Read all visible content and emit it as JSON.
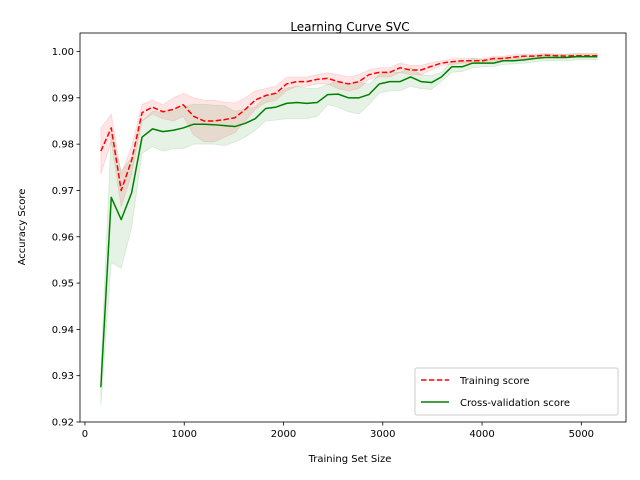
{
  "chart_data": {
    "type": "line",
    "title": "Learning Curve SVC",
    "xlabel": "Training Set Size",
    "ylabel": "Accuracy Score",
    "xlim": [
      -50,
      5450
    ],
    "ylim": [
      0.92,
      1.004
    ],
    "xticks": [
      0,
      1000,
      2000,
      3000,
      4000,
      5000
    ],
    "xtick_labels": [
      "0",
      "1000",
      "2000",
      "3000",
      "4000",
      "5000"
    ],
    "yticks": [
      0.92,
      0.93,
      0.94,
      0.95,
      0.96,
      0.97,
      0.98,
      0.99,
      1.0
    ],
    "ytick_labels": [
      "0.92",
      "0.93",
      "0.94",
      "0.95",
      "0.96",
      "0.97",
      "0.98",
      "0.99",
      "1.00"
    ],
    "grid": false,
    "legend_position": "lower-right",
    "x": [
      160,
      265,
      365,
      470,
      575,
      680,
      785,
      890,
      990,
      1095,
      1200,
      1300,
      1405,
      1510,
      1615,
      1715,
      1820,
      1925,
      2030,
      2135,
      2235,
      2340,
      2445,
      2550,
      2655,
      2760,
      2860,
      2965,
      3070,
      3175,
      3280,
      3385,
      3490,
      3590,
      3695,
      3800,
      3905,
      4010,
      4115,
      4215,
      4320,
      4425,
      4530,
      4635,
      4740,
      4845,
      4950,
      5055,
      5160
    ],
    "series": [
      {
        "name": "Training score",
        "color": "#ff0000",
        "style": "dashed",
        "values": [
          0.9785,
          0.9835,
          0.97,
          0.9765,
          0.9868,
          0.988,
          0.987,
          0.9875,
          0.9885,
          0.986,
          0.985,
          0.985,
          0.9853,
          0.9857,
          0.9875,
          0.9895,
          0.9905,
          0.991,
          0.993,
          0.9935,
          0.9935,
          0.994,
          0.9942,
          0.9935,
          0.993,
          0.9935,
          0.995,
          0.9955,
          0.9955,
          0.9965,
          0.996,
          0.996,
          0.9968,
          0.9975,
          0.9978,
          0.998,
          0.998,
          0.998,
          0.9985,
          0.9985,
          0.9988,
          0.999,
          0.999,
          0.9992,
          0.9991,
          0.999,
          0.9991,
          0.9991,
          0.9991
        ],
        "band_lower": [
          0.9735,
          0.9805,
          0.9665,
          0.9735,
          0.985,
          0.9865,
          0.9855,
          0.985,
          0.986,
          0.982,
          0.9805,
          0.9805,
          0.9815,
          0.9825,
          0.985,
          0.9875,
          0.989,
          0.9895,
          0.9915,
          0.9925,
          0.9925,
          0.993,
          0.993,
          0.992,
          0.9915,
          0.992,
          0.994,
          0.9945,
          0.9945,
          0.9955,
          0.995,
          0.995,
          0.996,
          0.997,
          0.9972,
          0.9975,
          0.9975,
          0.9976,
          0.998,
          0.998,
          0.9983,
          0.9985,
          0.9986,
          0.9988,
          0.9987,
          0.9986,
          0.9987,
          0.9987,
          0.9987
        ],
        "band_upper": [
          0.9835,
          0.9865,
          0.9735,
          0.9795,
          0.9886,
          0.9895,
          0.9885,
          0.99,
          0.991,
          0.99,
          0.9895,
          0.9895,
          0.9891,
          0.9889,
          0.99,
          0.9915,
          0.992,
          0.9925,
          0.9945,
          0.9945,
          0.9945,
          0.995,
          0.9954,
          0.995,
          0.9945,
          0.995,
          0.996,
          0.9965,
          0.9965,
          0.9975,
          0.997,
          0.997,
          0.9976,
          0.998,
          0.9984,
          0.9985,
          0.9985,
          0.9984,
          0.999,
          0.999,
          0.9993,
          0.9995,
          0.9994,
          0.9996,
          0.9995,
          0.9994,
          0.9995,
          0.9995,
          0.9995
        ]
      },
      {
        "name": "Cross-validation score",
        "color": "#008000",
        "style": "solid",
        "values": [
          0.9275,
          0.9685,
          0.9637,
          0.9695,
          0.9815,
          0.9833,
          0.9827,
          0.983,
          0.9835,
          0.9843,
          0.9843,
          0.9842,
          0.984,
          0.9838,
          0.9845,
          0.9855,
          0.9877,
          0.988,
          0.9888,
          0.989,
          0.9888,
          0.989,
          0.9907,
          0.9908,
          0.99,
          0.99,
          0.9907,
          0.993,
          0.9935,
          0.9935,
          0.9945,
          0.9935,
          0.9933,
          0.9945,
          0.9967,
          0.9967,
          0.9975,
          0.9975,
          0.9975,
          0.998,
          0.998,
          0.9982,
          0.9985,
          0.9987,
          0.9987,
          0.9987,
          0.9989,
          0.9989,
          0.9989
        ],
        "band_lower": [
          0.9235,
          0.9545,
          0.9532,
          0.962,
          0.978,
          0.9795,
          0.9785,
          0.979,
          0.979,
          0.98,
          0.98,
          0.98,
          0.9797,
          0.9805,
          0.9815,
          0.983,
          0.985,
          0.9852,
          0.9855,
          0.9855,
          0.9855,
          0.986,
          0.9885,
          0.988,
          0.987,
          0.9865,
          0.9885,
          0.991,
          0.9915,
          0.9915,
          0.9925,
          0.992,
          0.9918,
          0.9935,
          0.9955,
          0.9957,
          0.9965,
          0.9967,
          0.9968,
          0.9972,
          0.9973,
          0.9975,
          0.9978,
          0.998,
          0.998,
          0.998,
          0.9982,
          0.9982,
          0.9982
        ],
        "band_upper": [
          0.9315,
          0.9825,
          0.9742,
          0.977,
          0.985,
          0.9871,
          0.9869,
          0.987,
          0.988,
          0.9886,
          0.9886,
          0.9884,
          0.9883,
          0.9871,
          0.9875,
          0.988,
          0.9904,
          0.9908,
          0.9921,
          0.9925,
          0.9921,
          0.992,
          0.9929,
          0.9936,
          0.993,
          0.9935,
          0.9929,
          0.995,
          0.9955,
          0.9955,
          0.9965,
          0.995,
          0.9948,
          0.9955,
          0.9979,
          0.9977,
          0.9985,
          0.9983,
          0.9982,
          0.9988,
          0.9987,
          0.9989,
          0.9992,
          0.9994,
          0.9994,
          0.9994,
          0.9996,
          0.9996,
          0.9996
        ]
      }
    ]
  }
}
